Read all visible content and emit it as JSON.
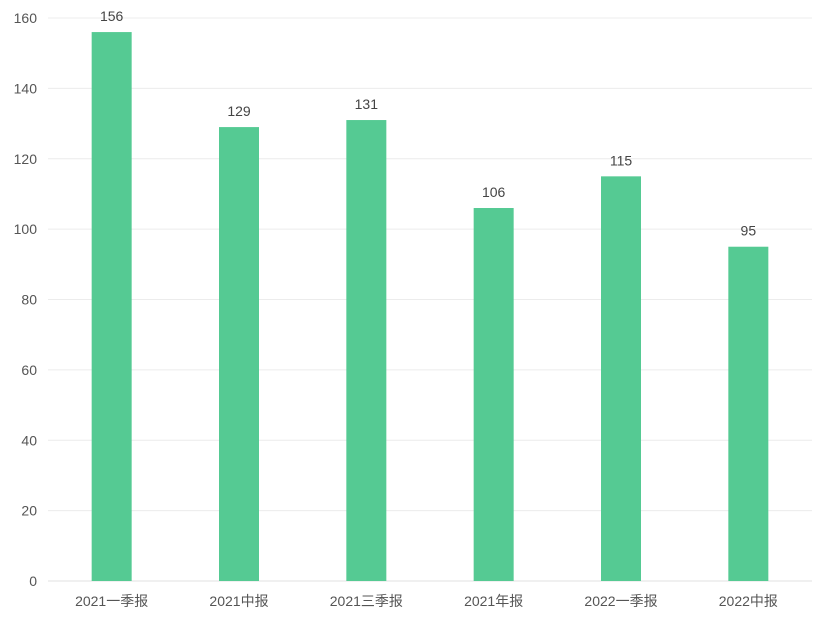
{
  "chart_data": {
    "type": "bar",
    "title": "",
    "xlabel": "",
    "ylabel": "",
    "categories": [
      "2021一季报",
      "2021中报",
      "2021三季报",
      "2021年报",
      "2022一季报",
      "2022中报"
    ],
    "values": [
      156,
      129,
      131,
      106,
      115,
      95
    ],
    "ylim": [
      0,
      160
    ],
    "yticks": [
      0,
      20,
      40,
      60,
      80,
      100,
      120,
      140,
      160
    ],
    "grid": true,
    "legend": "none",
    "bar_color": "#55ca93",
    "data_labels": true
  }
}
